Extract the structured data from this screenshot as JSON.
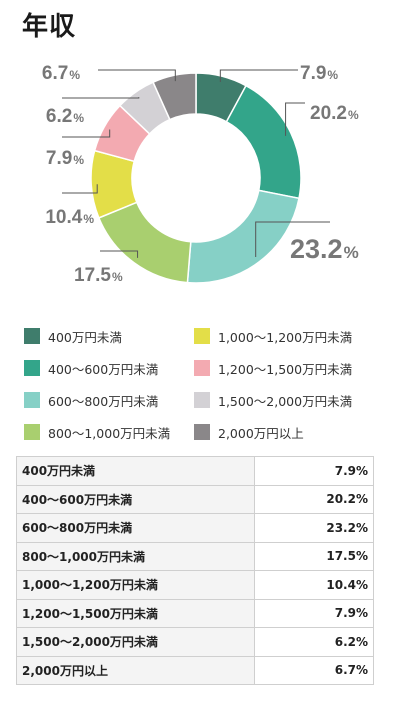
{
  "page": {
    "title": "年収"
  },
  "chart_data": {
    "type": "pie",
    "categories": [
      "400万円未満",
      "400〜600万円未満",
      "600〜800万円未満",
      "800〜1,000万円未満",
      "1,000〜1,200万円未満",
      "1,200〜1,500万円未満",
      "1,500〜2,000万円未満",
      "2,000万円以上"
    ],
    "values": [
      7.9,
      20.2,
      23.2,
      17.5,
      10.4,
      7.9,
      6.2,
      6.7
    ],
    "labels": [
      "7.9",
      "20.2",
      "23.2",
      "17.5",
      "10.4",
      "7.9",
      "6.2",
      "6.7"
    ],
    "unit": "%",
    "colors": [
      "#3f7d6c",
      "#33a58a",
      "#86d0c6",
      "#a9cf6f",
      "#e3de48",
      "#f3aab1",
      "#d3d1d5",
      "#8a8789"
    ],
    "legend": "bottom"
  },
  "table": {
    "rows": [
      {
        "label": "400万円未満",
        "value": "7.9%"
      },
      {
        "label": "400〜600万円未満",
        "value": "20.2%"
      },
      {
        "label": "600〜800万円未満",
        "value": "23.2%"
      },
      {
        "label": "800〜1,000万円未満",
        "value": "17.5%"
      },
      {
        "label": "1,000〜1,200万円未満",
        "value": "10.4%"
      },
      {
        "label": "1,200〜1,500万円未満",
        "value": "7.9%"
      },
      {
        "label": "1,500〜2,000万円未満",
        "value": "6.2%"
      },
      {
        "label": "2,000万円以上",
        "value": "6.7%"
      }
    ]
  }
}
